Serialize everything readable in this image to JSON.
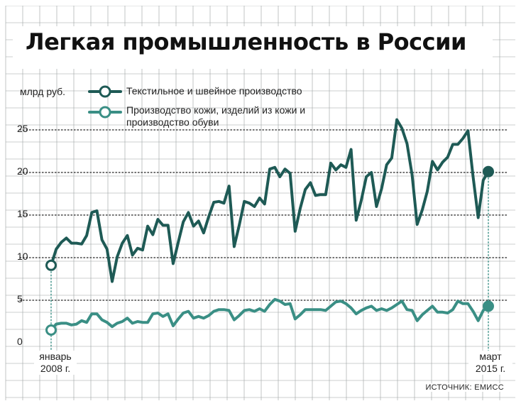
{
  "title": "Легкая промышленность в России",
  "unit": "млрд руб.",
  "source": "ИСТОЧНИК: ЕМИСС",
  "start_label": "январь\n2008 г.",
  "end_label": "март\n2015 г.",
  "colors": {
    "textile": "#1e5a55",
    "leather": "#3a8f85",
    "grid": "#9aa0a0",
    "text": "#222222"
  },
  "chart_data": {
    "type": "line",
    "title": "Легкая промышленность в России",
    "ylabel": "млрд руб.",
    "ylim": [
      0,
      27
    ],
    "yticks": [
      0,
      5,
      10,
      15,
      20,
      25
    ],
    "grid": true,
    "legend_position": "top",
    "x_start": "январь 2008 г.",
    "x_end": "март 2015 г.",
    "series": [
      {
        "name": "Текстильное и швейное производство",
        "values": [
          9.1,
          11.0,
          11.8,
          12.3,
          11.7,
          11.7,
          11.6,
          12.6,
          15.3,
          15.5,
          12.1,
          11.0,
          7.2,
          10.1,
          11.7,
          12.6,
          10.3,
          11.1,
          10.9,
          13.7,
          12.7,
          14.5,
          13.8,
          13.8,
          9.3,
          11.8,
          14.2,
          15.3,
          13.7,
          14.3,
          12.9,
          14.8,
          16.5,
          16.6,
          16.4,
          18.4,
          11.3,
          13.8,
          16.6,
          16.4,
          16.0,
          17.0,
          16.3,
          20.4,
          20.6,
          19.5,
          20.4,
          19.9,
          13.1,
          15.8,
          18.0,
          18.8,
          17.3,
          17.4,
          17.4,
          21.1,
          20.3,
          20.9,
          20.6,
          22.7,
          14.4,
          16.7,
          19.5,
          20.0,
          16.0,
          18.1,
          20.9,
          21.7,
          26.2,
          25.2,
          23.4,
          19.7,
          13.9,
          15.6,
          17.8,
          21.3,
          20.3,
          21.2,
          21.8,
          23.3,
          23.3,
          24.0,
          24.9,
          19.5,
          14.7,
          19.1,
          20.1
        ]
      },
      {
        "name": "Производство кожи, изделий из кожи и производство обуви",
        "values": [
          1.5,
          2.2,
          2.3,
          2.3,
          2.1,
          2.2,
          2.6,
          2.4,
          3.4,
          3.4,
          2.7,
          2.4,
          1.9,
          2.3,
          2.5,
          2.9,
          2.3,
          2.5,
          2.4,
          2.4,
          3.4,
          3.5,
          3.1,
          3.4,
          2.0,
          2.8,
          3.5,
          3.7,
          2.9,
          3.1,
          2.9,
          3.2,
          3.7,
          3.9,
          3.9,
          3.8,
          2.7,
          3.2,
          3.8,
          3.9,
          3.7,
          4.0,
          3.7,
          4.5,
          5.1,
          4.9,
          4.5,
          4.6,
          2.8,
          3.3,
          3.9,
          3.9,
          3.9,
          3.9,
          3.8,
          4.3,
          4.8,
          4.9,
          4.6,
          4.1,
          3.4,
          3.8,
          4.1,
          4.3,
          3.8,
          4.0,
          3.8,
          4.1,
          4.5,
          4.9,
          3.9,
          3.8,
          2.6,
          3.3,
          3.8,
          4.3,
          3.6,
          3.6,
          3.5,
          3.9,
          4.9,
          4.6,
          4.6,
          3.7,
          2.6,
          3.8,
          4.3
        ]
      }
    ]
  }
}
